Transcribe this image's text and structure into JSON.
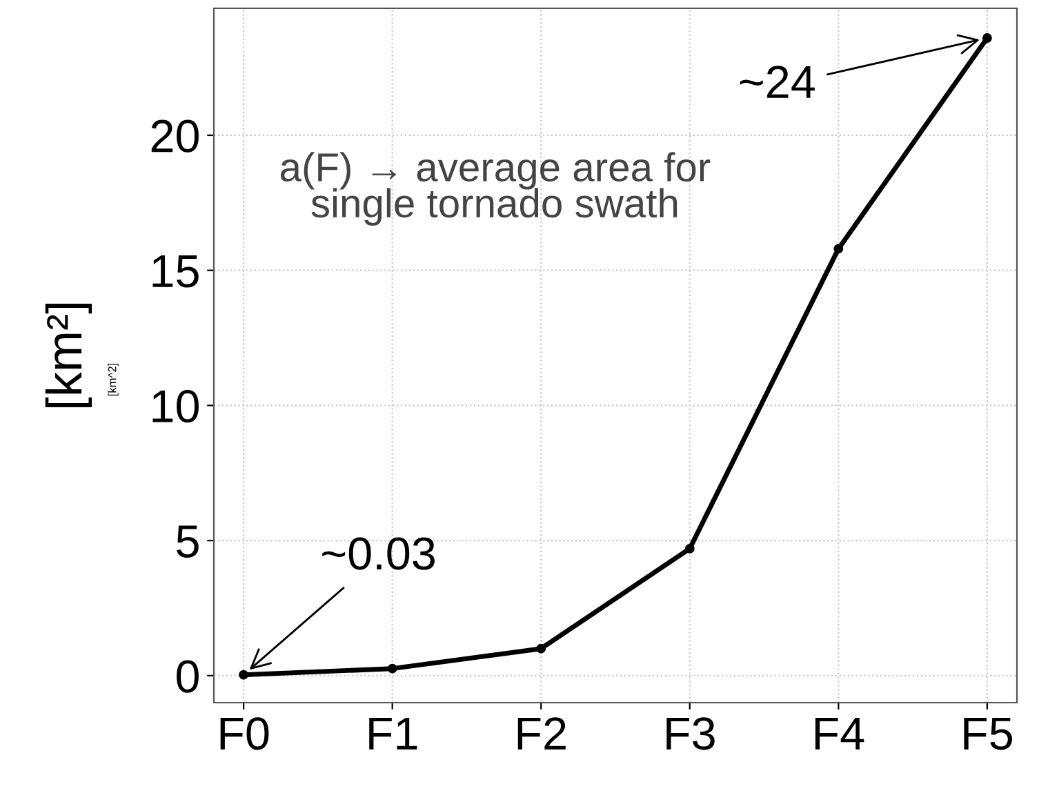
{
  "chart_data": {
    "type": "line",
    "categories": [
      "F0",
      "F1",
      "F2",
      "F3",
      "F4",
      "F5"
    ],
    "series": [
      {
        "color": "#000000",
        "values": [
          0.03,
          0.26,
          1.0,
          4.7,
          15.8,
          23.6
        ]
      }
    ],
    "ylabel": "[km²]",
    "ylim": [
      -1,
      24.7
    ],
    "yticks": [
      0,
      5,
      10,
      15,
      20
    ],
    "grid": true,
    "marker": "circle",
    "line_style": "solid",
    "annotations": [
      "a(F) → average area for\nsingle tornado swath",
      "[km^2]",
      {
        "text": "~0.03",
        "x": "F0",
        "y": 0.03
      },
      {
        "text": "~24",
        "x": "F5",
        "y": 23.6
      }
    ]
  }
}
